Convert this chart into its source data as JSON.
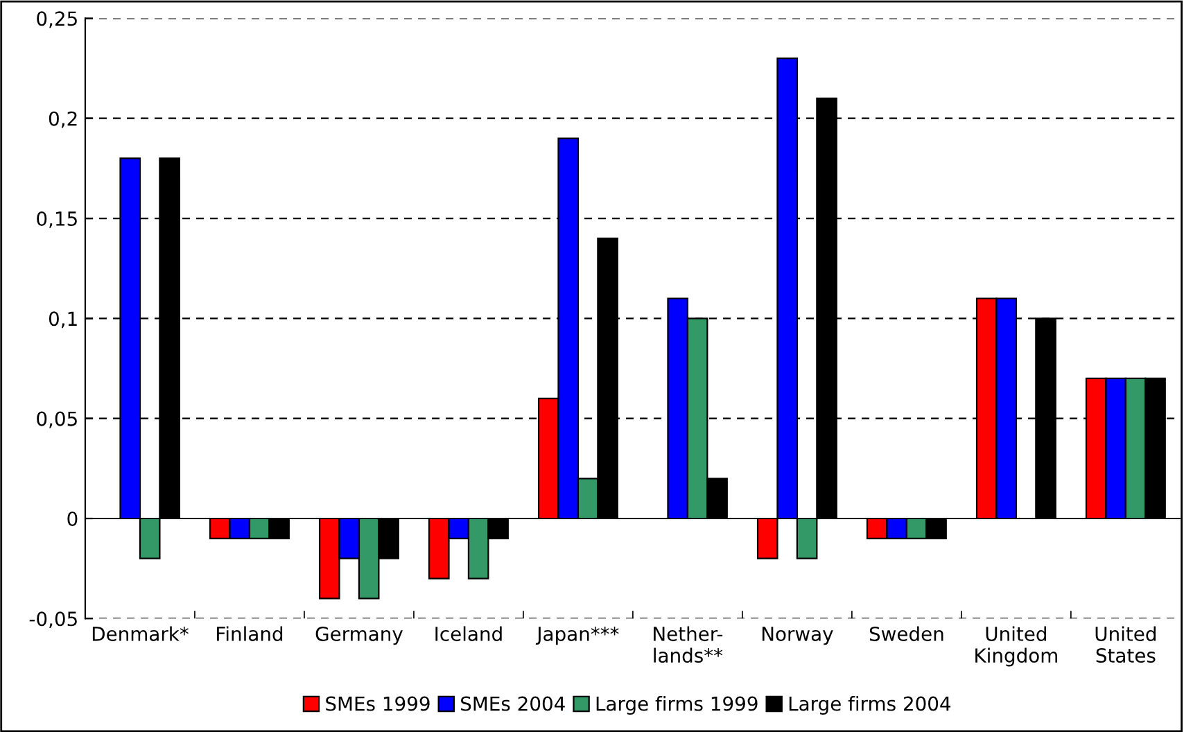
{
  "chart_data": {
    "type": "bar",
    "categories": [
      "Denmark*",
      "Finland",
      "Germany",
      "Iceland",
      "Japan***",
      "Nether-\nlands**",
      "Norway",
      "Sweden",
      "United\nKingdom",
      "United\nStates"
    ],
    "series": [
      {
        "name": "SMEs 1999",
        "color": "#ff0000",
        "values": [
          null,
          -0.01,
          -0.04,
          -0.03,
          0.06,
          null,
          -0.02,
          -0.01,
          0.11,
          0.07
        ]
      },
      {
        "name": "SMEs 2004",
        "color": "#0000ff",
        "values": [
          0.18,
          -0.01,
          -0.02,
          -0.01,
          0.19,
          0.11,
          0.23,
          -0.01,
          0.11,
          0.07
        ]
      },
      {
        "name": "Large firms 1999",
        "color": "#339966",
        "values": [
          -0.02,
          -0.01,
          -0.04,
          -0.03,
          0.02,
          0.1,
          -0.02,
          -0.01,
          null,
          0.07
        ]
      },
      {
        "name": "Large firms 2004",
        "color": "#000000",
        "values": [
          0.18,
          -0.01,
          -0.02,
          -0.01,
          0.14,
          0.02,
          0.21,
          -0.01,
          0.1,
          0.07
        ]
      }
    ],
    "ylim": [
      -0.05,
      0.25
    ],
    "yticks": [
      {
        "value": -0.05,
        "label": "-0,05"
      },
      0,
      {
        "value": 0.05,
        "label": "0,05"
      },
      {
        "value": 0.1,
        "label": "0,1"
      },
      {
        "value": 0.15,
        "label": "0,15"
      },
      {
        "value": 0.2,
        "label": "0,2"
      },
      {
        "value": 0.25,
        "label": "0,25"
      }
    ],
    "grid": "y",
    "legend": "bottom"
  }
}
